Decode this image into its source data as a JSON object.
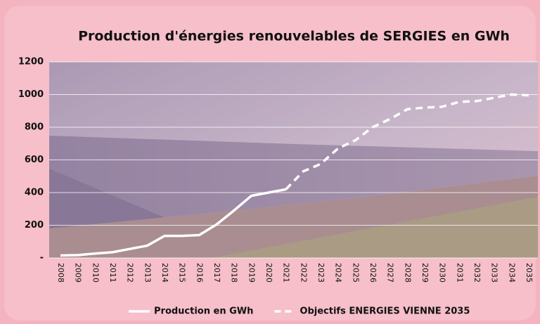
{
  "chart_data": {
    "type": "line",
    "title": "Production d'énergies renouvelables de SERGIES en GWh",
    "categories": [
      "2008",
      "2009",
      "2010",
      "2011",
      "2012",
      "2013",
      "2014",
      "2015",
      "2016",
      "2017",
      "2018",
      "2019",
      "2020",
      "2021",
      "2022",
      "2023",
      "2024",
      "2025",
      "2026",
      "2027",
      "2028",
      "2029",
      "2030",
      "2031",
      "2032",
      "2033",
      "2034",
      "2035"
    ],
    "series": [
      {
        "name": "Production en GWh",
        "color": "#ffffff",
        "line_style": "solid",
        "values": [
          15,
          17,
          27,
          35,
          55,
          75,
          135,
          135,
          140,
          205,
          290,
          380,
          400,
          420,
          null,
          null,
          null,
          null,
          null,
          null,
          null,
          null,
          null,
          null,
          null,
          null,
          null,
          null
        ]
      },
      {
        "name": "Objectifs ENERGIES VIENNE 2035",
        "color": "#ffffff",
        "line_style": "dashed",
        "values": [
          null,
          null,
          null,
          null,
          null,
          null,
          null,
          null,
          null,
          null,
          null,
          null,
          null,
          420,
          530,
          575,
          670,
          720,
          800,
          850,
          910,
          920,
          925,
          955,
          960,
          980,
          1000,
          995
        ]
      }
    ],
    "ylim": [
      0,
      1200
    ],
    "yticks": [
      {
        "value": 0,
        "label": "-"
      },
      200,
      400,
      600,
      800,
      1000,
      1200
    ],
    "grid": true
  }
}
